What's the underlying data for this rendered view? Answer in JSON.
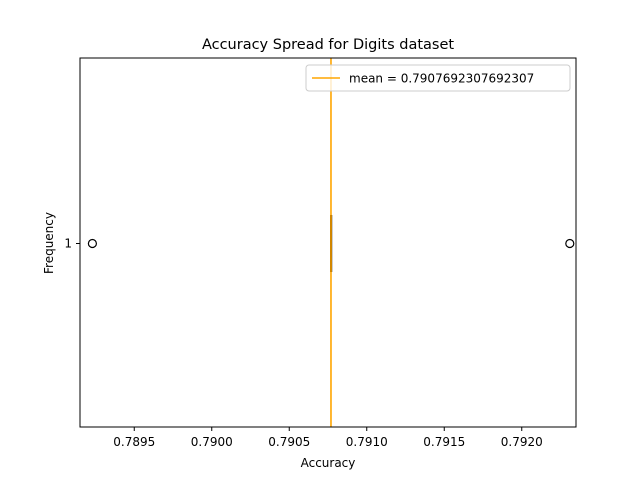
{
  "chart_data": {
    "type": "boxplot",
    "title": "Accuracy Spread for Digits dataset",
    "xlabel": "Accuracy",
    "ylabel": "Frequency",
    "xlim": [
      0.78915,
      0.79235
    ],
    "x_ticks": [
      0.7895,
      0.79,
      0.7905,
      0.791,
      0.7915,
      0.792
    ],
    "x_tick_labels": [
      "0.7895",
      "0.7900",
      "0.7905",
      "0.7910",
      "0.7915",
      "0.7920"
    ],
    "y_ticks": [
      1
    ],
    "y_tick_labels": [
      "1"
    ],
    "box": {
      "position": 1,
      "q1": 0.79077,
      "median": 0.79077,
      "q3": 0.79077,
      "whisker_low": 0.79077,
      "whisker_high": 0.79077,
      "outliers": [
        0.78923,
        0.79231
      ]
    },
    "mean_line": {
      "value": 0.7907692307692307,
      "label": "mean = 0.7907692307692307",
      "color": "#ffa500"
    },
    "legend_position": "upper right",
    "grid": false
  }
}
